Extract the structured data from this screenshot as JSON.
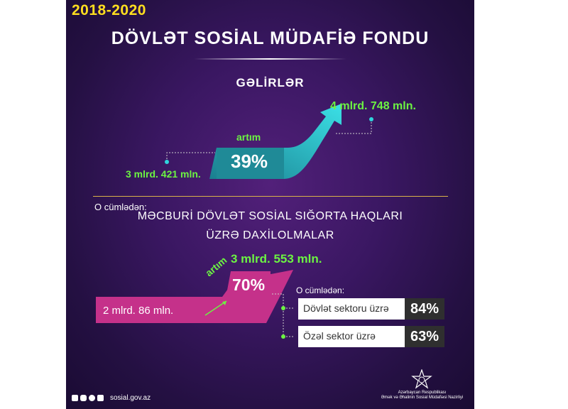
{
  "header": {
    "years": "2018-2020",
    "title": "DÖVLƏT SOSİAL MÜDAFİƏ FONDU"
  },
  "income": {
    "title": "GƏLİRLƏR",
    "start_value": "3 mlrd. 421 mln.",
    "end_value": "4 mlrd. 748 mln.",
    "growth_label": "artım",
    "growth_value": "39%"
  },
  "insurance": {
    "of_which_label": "O cümlədən:",
    "title_line1": "MƏCBURİ DÖVLƏT SOSİAL SIĞORTA HAQLARI",
    "title_line2": "ÜZRƏ DAXİLOLMALAR",
    "start_value": "2 mlrd. 86 mln.",
    "end_value": "3 mlrd. 553 mln.",
    "growth_label": "artım",
    "growth_value": "70%",
    "sectors_label": "O cümlədən:",
    "sectors": [
      {
        "name": "Dövlət sektoru üzrə",
        "value": "84%"
      },
      {
        "name": "Özəl sektor üzrə",
        "value": "63%"
      }
    ]
  },
  "footer": {
    "handle": "sosial.gov.az",
    "ministry_line1": "Azərbaycan Respublikası",
    "ministry_line2": "Əmək və Əhalinin Sosial Müdafiəsi Nazirliyi"
  },
  "colors": {
    "background": "#3a1762",
    "accent_yellow": "#ffde1f",
    "accent_green": "#6cf442",
    "teal": "#1f8a97",
    "cyan": "#2fd4dc",
    "magenta": "#c5318a"
  }
}
